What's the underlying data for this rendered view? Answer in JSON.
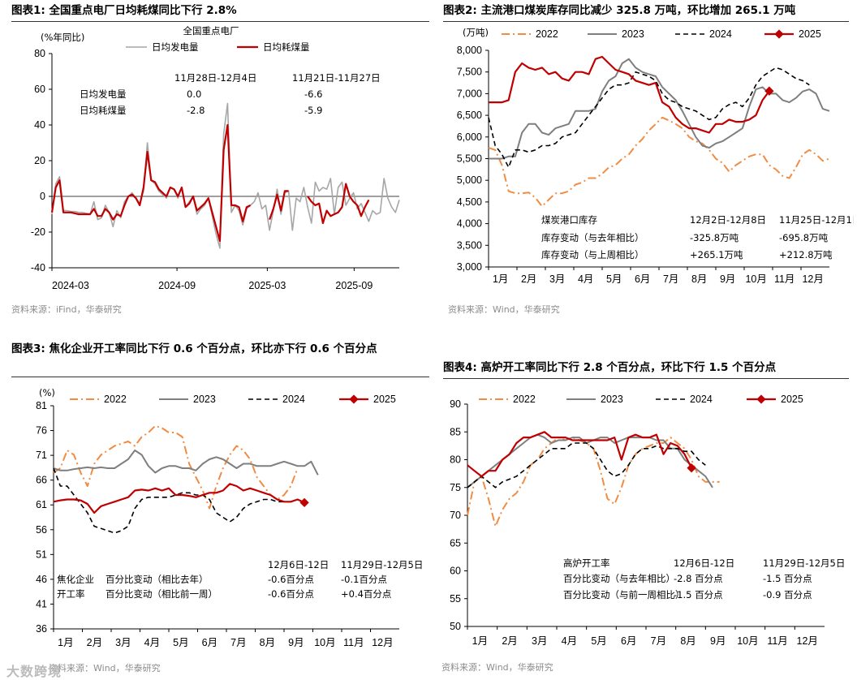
{
  "charts": [
    {
      "id": "c1",
      "type": "line",
      "fig_title": "图表1:  全国重点电厂日均耗煤同比下行 2.8%",
      "chart_title": "全国重点电厂",
      "ylabel": "(%年同比)",
      "ylim": [
        -40,
        80
      ],
      "yticks": [
        "80",
        "60",
        "40",
        "20",
        "0",
        "-20",
        "-40"
      ],
      "xticks": [
        "2024-03",
        "2024-09",
        "2025-03",
        "2025-09"
      ],
      "legend": [
        "日均发电量",
        "日均耗煤量"
      ],
      "series": [
        {
          "name": "日均发电量",
          "color": "#a6a6a6",
          "width": 1.6,
          "dash": "",
          "values": [
            -10,
            7,
            11,
            -8,
            -8,
            -8.5,
            -8.5,
            -9,
            -9,
            -9.5,
            -10,
            -3,
            -13,
            -12,
            -5,
            -9,
            -17,
            -8,
            -12,
            -3,
            0,
            2,
            -1,
            -4,
            3,
            30,
            9,
            7,
            3,
            1,
            -1,
            5,
            4,
            -1,
            5,
            -6,
            -3,
            0,
            -10,
            -7,
            -5,
            -1,
            -11,
            -21,
            -29,
            35,
            52,
            -9,
            -5,
            -8,
            -16,
            -7,
            -5,
            -3,
            2,
            -7,
            -5,
            -19,
            -8,
            4,
            -10,
            2,
            3,
            -19,
            -1,
            -3,
            5,
            -6,
            -15,
            8,
            3,
            5,
            4,
            10,
            -10,
            5,
            8,
            -5,
            -1,
            2,
            -7,
            -4,
            -9,
            -14,
            -8,
            -10,
            -9,
            10,
            -1,
            -6,
            -9,
            -2
          ]
        },
        {
          "name": "日均耗煤量",
          "color": "#c00000",
          "width": 2.2,
          "dash": "",
          "values": [
            -9,
            5,
            9,
            -9,
            -9,
            -9,
            -9.5,
            -10,
            -10,
            -10,
            -10,
            -7,
            -11,
            -11,
            -7,
            -9,
            -13,
            -10,
            -11,
            -5,
            0,
            1,
            -1,
            -5,
            5,
            25,
            9,
            8,
            4,
            2,
            0,
            5,
            4,
            0,
            5,
            -6,
            -4,
            0,
            -8,
            -6,
            -4,
            -1,
            -9,
            -17,
            -25,
            26,
            40,
            -5,
            -5,
            -6,
            -14,
            -6,
            -5,
            null,
            null,
            null,
            null,
            -13,
            -7,
            1,
            -8,
            3,
            3,
            null,
            null,
            null,
            null,
            0,
            -3,
            -5,
            -4,
            -15,
            -8,
            -11,
            -10,
            -9,
            -6,
            7,
            0,
            -3,
            -5,
            -11,
            -6,
            -2
          ]
        }
      ],
      "table": {
        "headers": [
          "11月28日-12月4日",
          "11月21日-11月27日"
        ],
        "rows": [
          {
            "label": "日均发电量",
            "values": [
              "0.0",
              "-6.6"
            ]
          },
          {
            "label": "日均耗煤量",
            "values": [
              "-2.8",
              "-5.9"
            ]
          }
        ]
      },
      "source": "资料来源：iFind，华泰研究"
    },
    {
      "id": "c2",
      "type": "line",
      "fig_title": "图表2:  主流港口煤炭库存同比减少 325.8 万吨，环比增加 265.1 万吨",
      "ylabel": "(万吨)",
      "ylim": [
        3000,
        8000
      ],
      "yticks": [
        "8,000",
        "7,500",
        "7,000",
        "6,500",
        "6,000",
        "5,500",
        "5,000",
        "4,500",
        "4,000",
        "3,500",
        "3,000"
      ],
      "xticks": [
        "1月",
        "2月",
        "3月",
        "4月",
        "5月",
        "6月",
        "7月",
        "8月",
        "9月",
        "10月",
        "11月",
        "12月"
      ],
      "legend": [
        "2022",
        "2023",
        "2024",
        "2025"
      ],
      "series": [
        {
          "name": "2022",
          "color": "#f08c44",
          "width": 2,
          "dash": "10,4,2,4",
          "values": [
            5750,
            5700,
            5350,
            4750,
            4700,
            4700,
            4720,
            4600,
            4400,
            4550,
            4700,
            4700,
            4750,
            4900,
            4950,
            5050,
            5050,
            5150,
            5300,
            5350,
            5500,
            5600,
            5800,
            5950,
            6150,
            6300,
            6450,
            6380,
            6300,
            6200,
            6000,
            5900,
            5850,
            5700,
            5500,
            5400,
            5200,
            5350,
            5450,
            5550,
            5600,
            5600,
            5350,
            5250,
            5100,
            5050,
            5300,
            5600,
            5700,
            5600,
            5450,
            5500
          ]
        },
        {
          "name": "2023",
          "color": "#7f7f7f",
          "width": 2,
          "dash": "",
          "values": [
            5500,
            5500,
            5500,
            5550,
            5550,
            6100,
            6300,
            6300,
            6100,
            6050,
            6200,
            6250,
            6300,
            6600,
            6600,
            6600,
            6650,
            7050,
            7300,
            7400,
            7700,
            7800,
            7600,
            7500,
            7450,
            7400,
            7150,
            7000,
            6850,
            6600,
            6300,
            6000,
            5800,
            5750,
            5850,
            5900,
            6000,
            6100,
            6200,
            6700,
            7100,
            7150,
            7000,
            7000,
            6850,
            6800,
            6900,
            7050,
            7100,
            7000,
            6650,
            6600
          ]
        },
        {
          "name": "2024",
          "color": "#000000",
          "width": 1.6,
          "dash": "6,4",
          "values": [
            6450,
            5800,
            5600,
            5300,
            5700,
            5700,
            5650,
            5700,
            5800,
            5800,
            5850,
            6000,
            6050,
            6100,
            6300,
            6500,
            6700,
            6900,
            7100,
            7200,
            7200,
            7250,
            7500,
            7450,
            7400,
            7300,
            7000,
            6850,
            6800,
            6700,
            6650,
            6600,
            6500,
            6400,
            6450,
            6650,
            6750,
            6800,
            6700,
            6900,
            7200,
            7400,
            7500,
            7600,
            7550,
            7450,
            7350,
            7300,
            7200
          ]
        },
        {
          "name": "2025",
          "color": "#c00000",
          "width": 2.2,
          "dash": "",
          "values": [
            6800,
            6800,
            6800,
            6850,
            7500,
            7700,
            7600,
            7550,
            7600,
            7450,
            7500,
            7350,
            7300,
            7500,
            7500,
            7450,
            7800,
            7850,
            7700,
            7550,
            7500,
            7450,
            7300,
            7250,
            7200,
            7250,
            6800,
            6700,
            6450,
            6300,
            6200,
            6200,
            6150,
            6100,
            6300,
            6300,
            6400,
            6350,
            6350,
            6400,
            6500,
            6850,
            7060
          ]
        }
      ],
      "end_marker": {
        "series": "2025",
        "value": 7060
      },
      "table": {
        "headers": [
          "煤炭港口库存",
          "12月2日-12月8日",
          "11月25日-12月1日"
        ],
        "rows": [
          {
            "label": "库存变动（与去年相比）",
            "values": [
              "-325.8万吨",
              "-695.8万吨"
            ]
          },
          {
            "label": "库存变动（与上周相比）",
            "values": [
              "+265.1万吨",
              "+212.8万吨"
            ]
          }
        ]
      },
      "source": "资料来源：Wind，华泰研究"
    },
    {
      "id": "c3",
      "type": "line",
      "fig_title": "图表3:  焦化企业开工率同比下行 0.6 个百分点，环比亦下行 0.6 个百分点",
      "ylabel": "(%)",
      "ylim": [
        36,
        86
      ],
      "yticks": [
        "81",
        "76",
        "71",
        "66",
        "61",
        "56",
        "51",
        "46",
        "41",
        "36"
      ],
      "xticks": [
        "1月",
        "2月",
        "3月",
        "4月",
        "5月",
        "6月",
        "7月",
        "8月",
        "9月",
        "10月",
        "11月",
        "12月"
      ],
      "legend": [
        "2022",
        "2023",
        "2024",
        "2025"
      ],
      "series": [
        {
          "name": "2022",
          "color": "#f08c44",
          "width": 2,
          "dash": "10,4,2,4",
          "values": [
            71,
            72,
            76,
            75,
            71,
            68,
            73,
            75,
            76,
            77,
            77.5,
            78,
            77,
            79,
            80,
            81.5,
            81,
            80,
            80,
            79,
            73,
            70,
            67,
            63,
            68,
            72,
            75,
            77,
            76,
            74,
            70,
            68,
            66,
            65,
            66,
            68,
            72
          ]
        },
        {
          "name": "2023",
          "color": "#7f7f7f",
          "width": 2,
          "dash": "",
          "values": [
            72,
            71.5,
            71.5,
            71.8,
            72,
            72.2,
            72,
            72.2,
            72,
            72,
            73,
            74,
            76,
            75,
            72.5,
            71,
            72,
            72.5,
            72.5,
            72,
            72,
            71.5,
            73,
            74,
            74.5,
            74,
            73,
            72,
            73,
            73,
            72.5,
            72.5,
            72.5,
            73,
            73.5,
            73,
            72.5,
            72.5,
            73.5,
            70.5
          ]
        },
        {
          "name": "2024",
          "color": "#000000",
          "width": 1.6,
          "dash": "6,4",
          "values": [
            72,
            68,
            68,
            66,
            64,
            62,
            59,
            58.5,
            58,
            57.5,
            58,
            59,
            63,
            65,
            65.5,
            65.5,
            65.5,
            65.5,
            66,
            66.5,
            66.5,
            66,
            66,
            65,
            62,
            61,
            60,
            61,
            63,
            64,
            64.5,
            65,
            65,
            64.5,
            64.5,
            64.5
          ]
        },
        {
          "name": "2025",
          "color": "#c00000",
          "width": 2.2,
          "dash": "",
          "values": [
            64.5,
            64.8,
            65,
            65,
            64.8,
            64,
            62,
            63.5,
            64,
            64.5,
            65,
            65.5,
            67,
            67.2,
            67,
            67.5,
            67,
            67.5,
            66,
            66,
            65.8,
            65.5,
            66,
            66.5,
            66.5,
            67,
            68.5,
            68,
            67,
            67.5,
            67,
            66.5,
            66,
            65,
            64.5,
            64.5,
            65,
            64.3
          ]
        }
      ],
      "end_marker": {
        "series": "2025",
        "value": 64.3
      },
      "table": {
        "headers": [
          "12月6日-12日",
          "11月29日-12月5日"
        ],
        "rows": [
          {
            "group": "焦化企业",
            "label": "百分比变动（相比去年）",
            "values": [
              "-0.6百分点",
              "-0.1百分点"
            ]
          },
          {
            "group": "开工率",
            "label": "百分比变动（相比前一周）",
            "values": [
              "-0.6百分点",
              "+0.4百分点"
            ]
          }
        ]
      },
      "source": "资料来源：Wind，华泰研究",
      "watermark": "大数跨境"
    },
    {
      "id": "c4",
      "type": "line",
      "fig_title": "图表4:  高炉开工率同比下行 2.8 个百分点，环比下行 1.5 个百分点",
      "ylim": [
        50,
        90
      ],
      "yticks": [
        "90",
        "85",
        "80",
        "75",
        "70",
        "65",
        "60",
        "55",
        "50"
      ],
      "xticks": [
        "1月",
        "2月",
        "3月",
        "4月",
        "5月",
        "6月",
        "7月",
        "8月",
        "9月",
        "10月",
        "11月",
        "12月"
      ],
      "legend": [
        "2022",
        "2023",
        "2024",
        "2025"
      ],
      "series": [
        {
          "name": "2022",
          "color": "#f08c44",
          "width": 2,
          "dash": "10,4,2,4",
          "values": [
            70,
            76,
            77,
            73,
            68,
            71,
            73,
            74,
            76,
            79,
            80,
            82,
            83,
            84,
            83.5,
            84,
            83.5,
            83,
            82,
            78,
            73,
            72,
            75,
            79,
            81,
            82,
            82.5,
            83,
            83,
            84,
            83,
            82,
            80,
            77,
            76,
            76,
            76
          ]
        },
        {
          "name": "2023",
          "color": "#7f7f7f",
          "width": 2,
          "dash": "",
          "values": [
            75,
            76,
            77,
            78,
            79,
            80,
            81,
            82,
            83,
            84,
            84.5,
            84,
            83,
            83.5,
            83.5,
            84,
            84,
            83,
            83.5,
            84,
            84,
            83,
            83.5,
            84,
            84,
            84,
            84,
            83.5,
            83.5,
            82,
            82,
            80,
            79,
            78,
            77,
            75
          ]
        },
        {
          "name": "2024",
          "color": "#000000",
          "width": 1.6,
          "dash": "6,4",
          "values": [
            75,
            76,
            77,
            76,
            75,
            76,
            76.5,
            77,
            78,
            79,
            80,
            81,
            82,
            82,
            82,
            83,
            83,
            83,
            82,
            80,
            78,
            77,
            77.5,
            79,
            81,
            82,
            82,
            82.5,
            82,
            82,
            82,
            81.5,
            81.5,
            80,
            79
          ]
        },
        {
          "name": "2025",
          "color": "#c00000",
          "width": 2.2,
          "dash": "",
          "values": [
            79,
            78,
            77,
            78,
            78,
            80,
            81,
            83,
            84,
            84,
            84.5,
            85,
            84,
            84,
            84,
            83.5,
            83.5,
            83.5,
            83.5,
            83.5,
            83.5,
            84,
            80,
            84,
            84.5,
            84,
            84,
            84.5,
            81,
            83,
            82.5,
            81,
            78.5
          ]
        }
      ],
      "end_marker": {
        "series": "2025",
        "value": 78.5
      },
      "table": {
        "headers": [
          "高炉开工率",
          "12月6日-12日",
          "11月29日-12月5日"
        ],
        "rows": [
          {
            "label": "百分比变动（与去年相比）",
            "values": [
              "-2.8 百分点",
              "-1.5 百分点"
            ]
          },
          {
            "label": "百分比变动（与前一周相比）",
            "values": [
              "-1.5 百分点",
              "-0.9 百分点"
            ]
          }
        ]
      },
      "source": "资料来源：Wind，华泰研究"
    }
  ]
}
